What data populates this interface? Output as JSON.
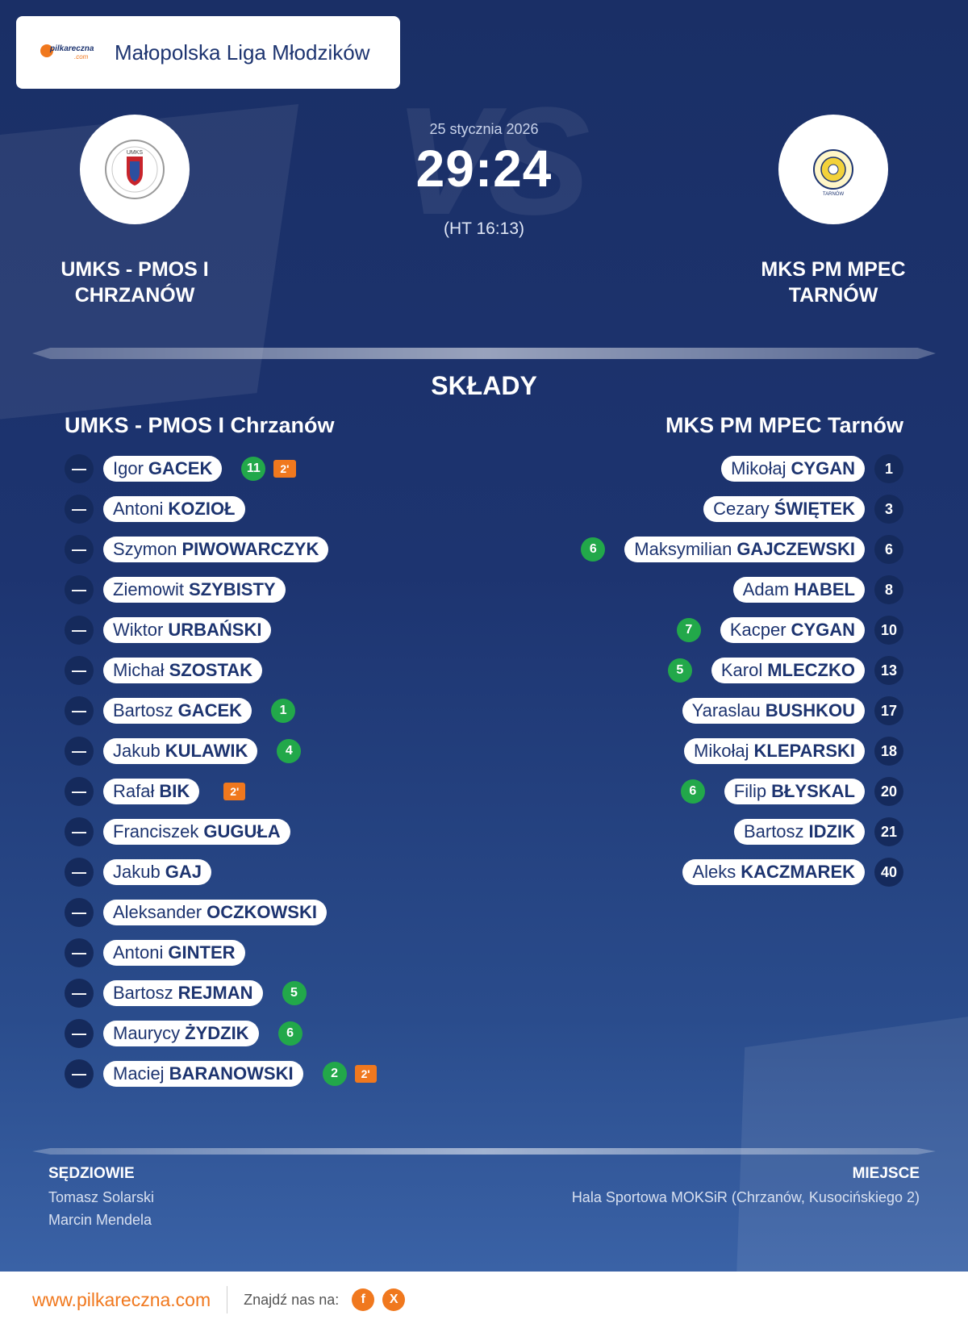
{
  "header": {
    "brand_word": "pilkareczna",
    "brand_suffix": ".com",
    "league": "Małopolska Liga Młodzików"
  },
  "match": {
    "date": "25 stycznia 2026",
    "score": "29:24",
    "halftime": "(HT 16:13)",
    "vs_watermark": "VS"
  },
  "home": {
    "name_line1": "UMKS - PMOS I",
    "name_line2": "CHRZANÓW",
    "lineup_title": "UMKS - PMOS I Chrzanów",
    "crest_text": "UMKS",
    "players": [
      {
        "number": "—",
        "first": "Igor",
        "last": "GACEK",
        "goals": "11",
        "penalty": "2'"
      },
      {
        "number": "—",
        "first": "Antoni",
        "last": "KOZIOŁ",
        "goals": "",
        "penalty": ""
      },
      {
        "number": "—",
        "first": "Szymon",
        "last": "PIWOWARCZYK",
        "goals": "",
        "penalty": ""
      },
      {
        "number": "—",
        "first": "Ziemowit",
        "last": "SZYBISTY",
        "goals": "",
        "penalty": ""
      },
      {
        "number": "—",
        "first": "Wiktor",
        "last": "URBAŃSKI",
        "goals": "",
        "penalty": ""
      },
      {
        "number": "—",
        "first": "Michał",
        "last": "SZOSTAK",
        "goals": "",
        "penalty": ""
      },
      {
        "number": "—",
        "first": "Bartosz",
        "last": "GACEK",
        "goals": "1",
        "penalty": ""
      },
      {
        "number": "—",
        "first": "Jakub",
        "last": "KULAWIK",
        "goals": "4",
        "penalty": ""
      },
      {
        "number": "—",
        "first": "Rafał",
        "last": "BIK",
        "goals": "",
        "penalty": "2'"
      },
      {
        "number": "—",
        "first": "Franciszek",
        "last": "GUGUŁA",
        "goals": "",
        "penalty": ""
      },
      {
        "number": "—",
        "first": "Jakub",
        "last": "GAJ",
        "goals": "",
        "penalty": ""
      },
      {
        "number": "—",
        "first": "Aleksander",
        "last": "OCZKOWSKI",
        "goals": "",
        "penalty": ""
      },
      {
        "number": "—",
        "first": "Antoni",
        "last": "GINTER",
        "goals": "",
        "penalty": ""
      },
      {
        "number": "—",
        "first": "Bartosz",
        "last": "REJMAN",
        "goals": "5",
        "penalty": ""
      },
      {
        "number": "—",
        "first": "Maurycy",
        "last": "ŻYDZIK",
        "goals": "6",
        "penalty": ""
      },
      {
        "number": "—",
        "first": "Maciej",
        "last": "BARANOWSKI",
        "goals": "2",
        "penalty": "2'"
      }
    ]
  },
  "away": {
    "name_line1": "MKS PM MPEC",
    "name_line2": "TARNÓW",
    "lineup_title": "MKS PM MPEC Tarnów",
    "crest_text": "TARNÓW",
    "players": [
      {
        "number": "1",
        "first": "Mikołaj",
        "last": "CYGAN",
        "goals": ""
      },
      {
        "number": "3",
        "first": "Cezary",
        "last": "ŚWIĘTEK",
        "goals": ""
      },
      {
        "number": "6",
        "first": "Maksymilian",
        "last": "GAJCZEWSKI",
        "goals": "6"
      },
      {
        "number": "8",
        "first": "Adam",
        "last": "HABEL",
        "goals": ""
      },
      {
        "number": "10",
        "first": "Kacper",
        "last": "CYGAN",
        "goals": "7"
      },
      {
        "number": "13",
        "first": "Karol",
        "last": "MLECZKO",
        "goals": "5"
      },
      {
        "number": "17",
        "first": "Yaraslau",
        "last": "BUSHKOU",
        "goals": ""
      },
      {
        "number": "18",
        "first": "Mikołaj",
        "last": "KLEPARSKI",
        "goals": ""
      },
      {
        "number": "20",
        "first": "Filip",
        "last": "BŁYSKAL",
        "goals": "6"
      },
      {
        "number": "21",
        "first": "Bartosz",
        "last": "IDZIK",
        "goals": ""
      },
      {
        "number": "40",
        "first": "Aleks",
        "last": "KACZMAREK",
        "goals": ""
      }
    ]
  },
  "lineups_title": "SKŁADY",
  "officials": {
    "label": "SĘDZIOWIE",
    "names": [
      "Tomasz Solarski",
      "Marcin Mendela"
    ]
  },
  "venue": {
    "label": "MIEJSCE",
    "name": "Hala Sportowa MOKSiR (Chrzanów, Kusocińskiego 2)"
  },
  "footer": {
    "site": "www.pilkareczna.com",
    "find_us": "Znajdź nas na:",
    "social": [
      {
        "icon": "facebook-icon",
        "glyph": "f"
      },
      {
        "icon": "x-icon",
        "glyph": "X"
      }
    ]
  },
  "colors": {
    "background": "#1d3470",
    "accent": "#f0781e",
    "goal_badge": "#22a84a"
  }
}
